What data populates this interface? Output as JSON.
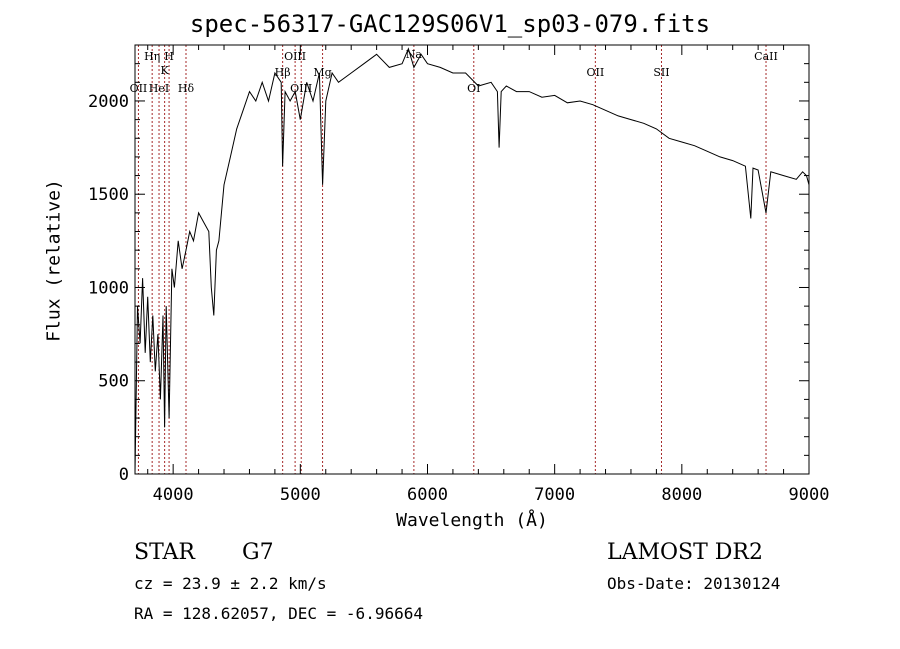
{
  "chart_data": {
    "type": "line",
    "title": "spec-56317-GAC129S06V1_sp03-079.fits",
    "xlabel": "Wavelength (Å)",
    "ylabel": "Flux (relative)",
    "xlim": [
      3700,
      9000
    ],
    "ylim": [
      0,
      2300
    ],
    "x_ticks": [
      4000,
      5000,
      6000,
      7000,
      8000,
      9000
    ],
    "x_tick_labels": [
      "4000",
      "5000",
      "6000",
      "7000",
      "8000",
      "9000"
    ],
    "y_ticks": [
      0,
      500,
      1000,
      1500,
      2000
    ],
    "y_tick_labels": [
      "0",
      "500",
      "1000",
      "1500",
      "2000"
    ],
    "grid": false,
    "line_color": "#000000",
    "marker_color": "#a52a2a",
    "series": [
      {
        "name": "flux",
        "x": [
          3700,
          3720,
          3740,
          3760,
          3780,
          3800,
          3820,
          3840,
          3860,
          3880,
          3900,
          3920,
          3933,
          3945,
          3968,
          3990,
          4010,
          4040,
          4070,
          4101,
          4130,
          4160,
          4200,
          4240,
          4280,
          4300,
          4320,
          4340,
          4360,
          4400,
          4450,
          4500,
          4550,
          4600,
          4650,
          4700,
          4750,
          4800,
          4850,
          4861,
          4880,
          4920,
          4960,
          5000,
          5050,
          5100,
          5150,
          5175,
          5200,
          5250,
          5300,
          5400,
          5500,
          5600,
          5700,
          5800,
          5850,
          5893,
          5950,
          6000,
          6100,
          6200,
          6300,
          6400,
          6500,
          6550,
          6563,
          6580,
          6620,
          6700,
          6800,
          6900,
          7000,
          7100,
          7200,
          7300,
          7400,
          7500,
          7600,
          7700,
          7800,
          7900,
          8000,
          8100,
          8200,
          8300,
          8400,
          8500,
          8542,
          8560,
          8600,
          8662,
          8700,
          8800,
          8900,
          8950,
          8980,
          9000
        ],
        "y": [
          0,
          900,
          700,
          1050,
          650,
          950,
          600,
          850,
          550,
          750,
          400,
          850,
          250,
          900,
          300,
          1100,
          1000,
          1250,
          1100,
          1200,
          1300,
          1250,
          1400,
          1350,
          1300,
          1000,
          850,
          1200,
          1250,
          1550,
          1700,
          1850,
          1950,
          2050,
          2000,
          2100,
          2000,
          2150,
          2100,
          1650,
          2050,
          2000,
          2050,
          1900,
          2100,
          2000,
          2150,
          1550,
          2000,
          2150,
          2100,
          2150,
          2200,
          2250,
          2180,
          2200,
          2280,
          2180,
          2250,
          2200,
          2180,
          2150,
          2150,
          2080,
          2100,
          2050,
          1750,
          2050,
          2080,
          2050,
          2050,
          2020,
          2030,
          1990,
          2000,
          1980,
          1950,
          1920,
          1900,
          1880,
          1850,
          1800,
          1780,
          1760,
          1730,
          1700,
          1680,
          1650,
          1370,
          1640,
          1630,
          1400,
          1620,
          1600,
          1580,
          1620,
          1600,
          1550
        ]
      }
    ],
    "line_markers": [
      {
        "label": "OII",
        "x": 3727
      },
      {
        "label": "Hη",
        "x": 3835
      },
      {
        "label": "HeI",
        "x": 3889
      },
      {
        "label": "K",
        "x": 3933
      },
      {
        "label": "H",
        "x": 3968
      },
      {
        "label": "Hδ",
        "x": 4101
      },
      {
        "label": "Hβ",
        "x": 4861
      },
      {
        "label": "OIII",
        "x": 4959
      },
      {
        "label": "OIII",
        "x": 5007
      },
      {
        "label": "Mg",
        "x": 5175
      },
      {
        "label": "Na",
        "x": 5893
      },
      {
        "label": "OI",
        "x": 6364
      },
      {
        "label": "OII",
        "x": 7320
      },
      {
        "label": "SII",
        "x": 7840
      },
      {
        "label": "CaII",
        "x": 8662
      }
    ]
  },
  "info": {
    "object_type": "STAR",
    "subclass": "G7",
    "survey": "LAMOST DR2",
    "redshift": "cz = 23.9 ± 2.2 km/s",
    "obs_date": "Obs-Date: 20130124",
    "coords": "RA = 128.62057, DEC =  -6.96664"
  }
}
